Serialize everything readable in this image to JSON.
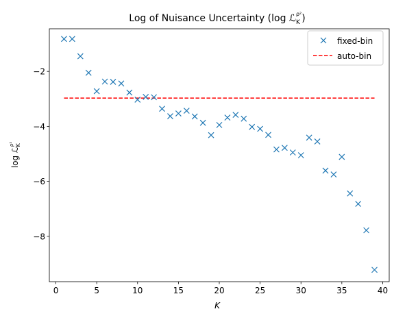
{
  "chart_data": {
    "type": "scatter",
    "title": "Log of Nuisance Uncertainty (log ℒ",
    "title_sub": "K",
    "title_sup": "ρ²",
    "title_end": ")",
    "xlabel": "K",
    "ylabel_prefix": "log ℒ",
    "ylabel_sub": "K",
    "ylabel_sup": "ρ²",
    "xlim": [
      -0.8,
      40.8
    ],
    "ylim": [
      -9.65,
      -0.45
    ],
    "xticks": [
      0,
      5,
      10,
      15,
      20,
      25,
      30,
      35,
      40
    ],
    "yticks": [
      -8,
      -6,
      -4,
      -2
    ],
    "ytick_labels": [
      "−8",
      "−6",
      "−4",
      "−2"
    ],
    "grid": false,
    "legend_position": "top-right",
    "series": [
      {
        "name": "fixed-bin",
        "marker": "x",
        "color": "#1f77b4",
        "x": [
          1,
          2,
          3,
          4,
          5,
          6,
          7,
          8,
          9,
          10,
          11,
          12,
          13,
          14,
          15,
          16,
          17,
          18,
          19,
          20,
          21,
          22,
          23,
          24,
          25,
          26,
          27,
          28,
          29,
          30,
          31,
          32,
          33,
          34,
          35,
          36,
          37,
          38,
          39
        ],
        "y": [
          -0.82,
          -0.82,
          -1.45,
          -2.05,
          -2.72,
          -2.37,
          -2.38,
          -2.44,
          -2.77,
          -3.03,
          -2.93,
          -2.94,
          -3.36,
          -3.63,
          -3.53,
          -3.43,
          -3.64,
          -3.87,
          -4.32,
          -3.95,
          -3.68,
          -3.58,
          -3.72,
          -4.02,
          -4.09,
          -4.31,
          -4.84,
          -4.78,
          -4.95,
          -5.05,
          -4.41,
          -4.55,
          -5.61,
          -5.75,
          -5.11,
          -6.44,
          -6.82,
          -7.78,
          -9.22
        ]
      },
      {
        "name": "auto-bin",
        "style": "dashed",
        "color": "#ff0000",
        "x": [
          1,
          39
        ],
        "y": [
          -2.97,
          -2.97
        ]
      }
    ]
  }
}
